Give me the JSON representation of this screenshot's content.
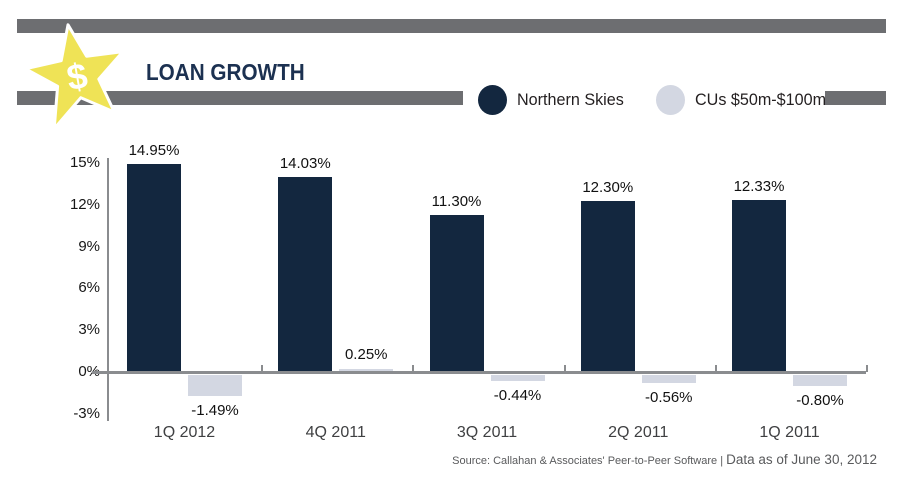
{
  "header": {
    "title": "LOAN GROWTH",
    "badge": {
      "icon": "dollar-star-icon",
      "dollar_sign": "$",
      "star_color": "#efe356"
    }
  },
  "legend": {
    "items": [
      {
        "label": "Northern Skies",
        "color": "#13273f"
      },
      {
        "label": "CUs $50m-$100m",
        "color": "#d3d7e2"
      }
    ]
  },
  "chart_data": {
    "type": "bar",
    "title": "LOAN GROWTH",
    "categories": [
      "1Q 2012",
      "4Q 2011",
      "3Q 2011",
      "2Q 2011",
      "1Q 2011"
    ],
    "series": [
      {
        "name": "Northern Skies",
        "color": "#13273f",
        "values": [
          14.95,
          14.03,
          11.3,
          12.3,
          12.33
        ],
        "labels": [
          "14.95%",
          "14.03%",
          "11.30%",
          "12.30%",
          "12.33%"
        ]
      },
      {
        "name": "CUs $50m-$100m",
        "color": "#d3d7e2",
        "values": [
          -1.49,
          0.25,
          -0.44,
          -0.56,
          -0.8
        ],
        "labels": [
          "-1.49%",
          "0.25%",
          "-0.44%",
          "-0.56%",
          "-0.80%"
        ]
      }
    ],
    "y_axis": {
      "tick_labels": [
        "15%",
        "12%",
        "9%",
        "6%",
        "3%",
        "0%",
        "-3%"
      ],
      "tick_values": [
        15,
        12,
        9,
        6,
        3,
        0,
        -3
      ],
      "ylim": [
        -3,
        15
      ]
    },
    "grid": false,
    "legend_position": "top-right",
    "xlabel": "",
    "ylabel": ""
  },
  "source": {
    "prefix": "Source: Callahan & Associates' Peer-to-Peer Software | ",
    "suffix": "Data as of June 30, 2012"
  },
  "colors": {
    "header_bar": "#6d6e71",
    "axis": "#8a8c8f",
    "navy": "#13273f",
    "light": "#d3d7e2",
    "star_yellow": "#efe356",
    "title_navy": "#1c3151"
  }
}
